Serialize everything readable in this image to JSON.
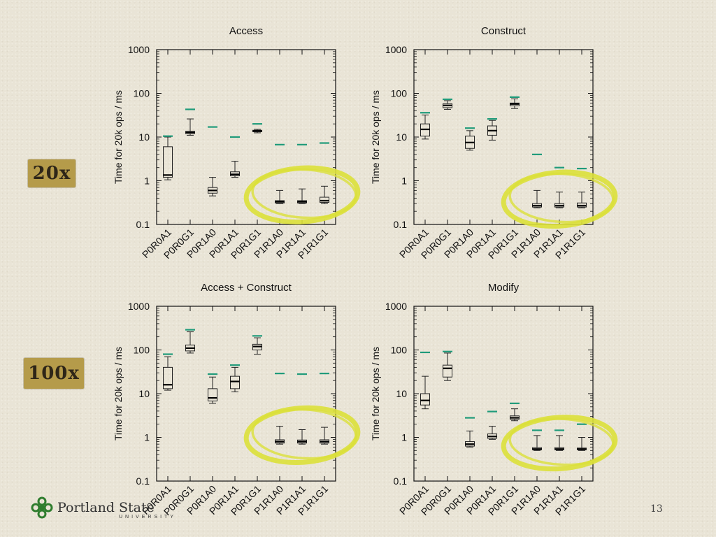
{
  "badges": {
    "top": "20x",
    "bottom": "100x"
  },
  "logo": {
    "name": "Portland State",
    "sub": "UNIVERSITY"
  },
  "page_number": "13",
  "colors": {
    "upper_bound": "#1f9b7a",
    "box_stroke": "#222222",
    "highlight": "#dbe03a"
  },
  "chart_data": [
    {
      "type": "box",
      "title": "Access",
      "ylabel": "Time for 20k ops / ms",
      "yscale": "log",
      "ylim": [
        0.1,
        1000
      ],
      "yticks": [
        "0.1",
        "1",
        "10",
        "100",
        "1000"
      ],
      "categories": [
        "P0R0A1",
        "P0R0G1",
        "P0R1A0",
        "P0R1A1",
        "P0R1G1",
        "P1R1A0",
        "P1R1A1",
        "P1R1G1"
      ],
      "boxes": [
        {
          "min": 1.05,
          "q1": 1.2,
          "median": 1.35,
          "q3": 6,
          "max": 10
        },
        {
          "min": 11,
          "q1": 12,
          "median": 12.8,
          "q3": 13.5,
          "max": 26
        },
        {
          "min": 0.45,
          "q1": 0.52,
          "median": 0.6,
          "q3": 0.7,
          "max": 1.2
        },
        {
          "min": 1.2,
          "q1": 1.3,
          "median": 1.4,
          "q3": 1.6,
          "max": 2.8
        },
        {
          "min": 12.5,
          "q1": 13.2,
          "median": 13.8,
          "q3": 14.3,
          "max": 15
        },
        {
          "min": 0.3,
          "q1": 0.31,
          "median": 0.33,
          "q3": 0.35,
          "max": 0.6
        },
        {
          "min": 0.3,
          "q1": 0.31,
          "median": 0.33,
          "q3": 0.35,
          "max": 0.65
        },
        {
          "min": 0.3,
          "q1": 0.32,
          "median": 0.35,
          "q3": 0.42,
          "max": 0.75
        }
      ],
      "upper_marks": [
        10.5,
        43,
        17,
        10,
        20,
        6.7,
        6.7,
        7.3
      ],
      "highlight": {
        "from": 5,
        "to": 7
      }
    },
    {
      "type": "box",
      "title": "Construct",
      "ylabel": "Time for 20k ops / ms",
      "yscale": "log",
      "ylim": [
        0.1,
        1000
      ],
      "yticks": [
        "0.1",
        "1",
        "10",
        "100",
        "1000"
      ],
      "categories": [
        "P0R0A1",
        "P0R0G1",
        "P0R1A0",
        "P0R1A1",
        "P0R1G1",
        "P1R1A0",
        "P1R1A1",
        "P1R1G1"
      ],
      "boxes": [
        {
          "min": 9,
          "q1": 10.5,
          "median": 15,
          "q3": 20,
          "max": 32
        },
        {
          "min": 43,
          "q1": 47,
          "median": 53,
          "q3": 58,
          "max": 68
        },
        {
          "min": 5,
          "q1": 5.5,
          "median": 7.5,
          "q3": 10.5,
          "max": 14
        },
        {
          "min": 8.5,
          "q1": 11,
          "median": 14,
          "q3": 18,
          "max": 24
        },
        {
          "min": 45,
          "q1": 52,
          "median": 57,
          "q3": 60,
          "max": 75
        },
        {
          "min": 0.24,
          "q1": 0.25,
          "median": 0.27,
          "q3": 0.3,
          "max": 0.6
        },
        {
          "min": 0.24,
          "q1": 0.25,
          "median": 0.27,
          "q3": 0.3,
          "max": 0.55
        },
        {
          "min": 0.24,
          "q1": 0.25,
          "median": 0.27,
          "q3": 0.31,
          "max": 0.55
        }
      ],
      "upper_marks": [
        36,
        73,
        16,
        26,
        82,
        4,
        2,
        1.9
      ],
      "highlight": {
        "from": 5,
        "to": 7
      }
    },
    {
      "type": "box",
      "title": "Access + Construct",
      "ylabel": "Time for 20k ops / ms",
      "yscale": "log",
      "ylim": [
        0.1,
        1000
      ],
      "yticks": [
        "0.1",
        "1",
        "10",
        "100",
        "1000"
      ],
      "categories": [
        "P0R0A1",
        "P0R0G1",
        "P0R1A0",
        "P0R1A1",
        "P0R1G1",
        "P1R1A0",
        "P1R1A1",
        "P1R1G1"
      ],
      "boxes": [
        {
          "min": 12,
          "q1": 13,
          "median": 16,
          "q3": 40,
          "max": 70
        },
        {
          "min": 85,
          "q1": 95,
          "median": 110,
          "q3": 130,
          "max": 260
        },
        {
          "min": 6,
          "q1": 6.8,
          "median": 8,
          "q3": 13,
          "max": 24
        },
        {
          "min": 11,
          "q1": 13,
          "median": 19,
          "q3": 25,
          "max": 40
        },
        {
          "min": 80,
          "q1": 100,
          "median": 120,
          "q3": 135,
          "max": 190
        },
        {
          "min": 0.7,
          "q1": 0.74,
          "median": 0.8,
          "q3": 0.88,
          "max": 1.8
        },
        {
          "min": 0.7,
          "q1": 0.74,
          "median": 0.8,
          "q3": 0.87,
          "max": 1.5
        },
        {
          "min": 0.7,
          "q1": 0.74,
          "median": 0.8,
          "q3": 0.88,
          "max": 1.7
        }
      ],
      "upper_marks": [
        80,
        290,
        28,
        45,
        210,
        29,
        28,
        29
      ],
      "highlight": {
        "from": 5,
        "to": 7
      }
    },
    {
      "type": "box",
      "title": "Modify",
      "ylabel": "Time for 20k ops / ms",
      "yscale": "log",
      "ylim": [
        0.1,
        1000
      ],
      "yticks": [
        "0.1",
        "1",
        "10",
        "100",
        "1000"
      ],
      "categories": [
        "P0R0A1",
        "P0R0G1",
        "P0R1A0",
        "P0R1A1",
        "P0R1G1",
        "P1R1A0",
        "P1R1A1",
        "P1R1G1"
      ],
      "boxes": [
        {
          "min": 4.5,
          "q1": 5.5,
          "median": 7,
          "q3": 10,
          "max": 25
        },
        {
          "min": 20,
          "q1": 24,
          "median": 38,
          "q3": 45,
          "max": 85
        },
        {
          "min": 0.6,
          "q1": 0.63,
          "median": 0.7,
          "q3": 0.8,
          "max": 1.4
        },
        {
          "min": 0.9,
          "q1": 0.95,
          "median": 1.05,
          "q3": 1.2,
          "max": 1.8
        },
        {
          "min": 2.4,
          "q1": 2.6,
          "median": 2.8,
          "q3": 3.1,
          "max": 4.5
        },
        {
          "min": 0.5,
          "q1": 0.52,
          "median": 0.54,
          "q3": 0.58,
          "max": 1.1
        },
        {
          "min": 0.5,
          "q1": 0.52,
          "median": 0.54,
          "q3": 0.58,
          "max": 1.1
        },
        {
          "min": 0.5,
          "q1": 0.52,
          "median": 0.54,
          "q3": 0.57,
          "max": 1.0
        }
      ],
      "upper_marks": [
        88,
        92,
        2.8,
        3.9,
        6,
        1.45,
        1.45,
        2
      ],
      "highlight": {
        "from": 5,
        "to": 7
      }
    }
  ]
}
